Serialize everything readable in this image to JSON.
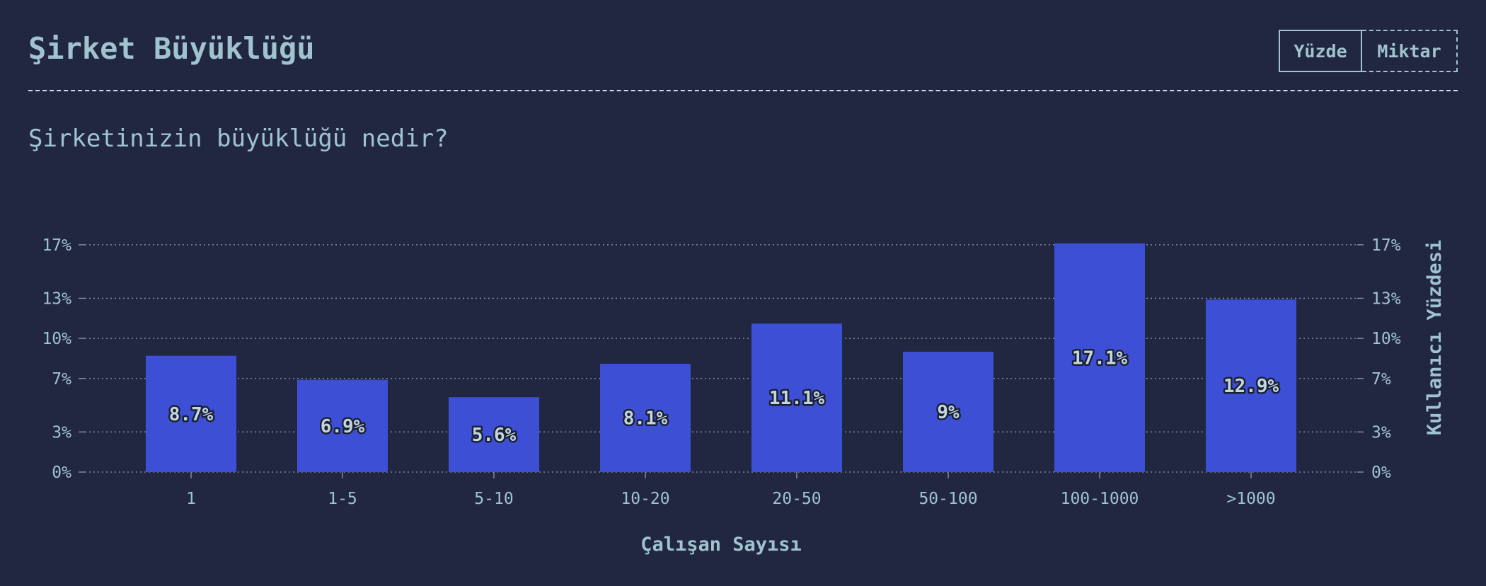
{
  "header": {
    "title": "Şirket Büyüklüğü",
    "toggle": {
      "percent_label": "Yüzde",
      "count_label": "Miktar"
    }
  },
  "question": "Şirketinizin büyüklüğü nedir?",
  "colors": {
    "background": "#222741",
    "bar": "#3d50d5",
    "text": "#9fc3cf"
  },
  "chart_data": {
    "type": "bar",
    "categories": [
      "1",
      "1-5",
      "5-10",
      "10-20",
      "20-50",
      "50-100",
      "100-1000",
      ">1000"
    ],
    "values": [
      8.7,
      6.9,
      5.6,
      8.1,
      11.1,
      9,
      17.1,
      12.9
    ],
    "data_labels": [
      "8.7%",
      "6.9%",
      "5.6%",
      "8.1%",
      "11.1%",
      "9%",
      "17.1%",
      "12.9%"
    ],
    "xlabel": "Çalışan Sayısı",
    "ylabel": "Kullanıcı Yüzdesi",
    "yticks": [
      0,
      3,
      7,
      10,
      13,
      17
    ],
    "ytick_labels": [
      "0%",
      "3%",
      "7%",
      "10%",
      "13%",
      "17%"
    ],
    "ylim": [
      0,
      17.1
    ],
    "grid": true
  }
}
